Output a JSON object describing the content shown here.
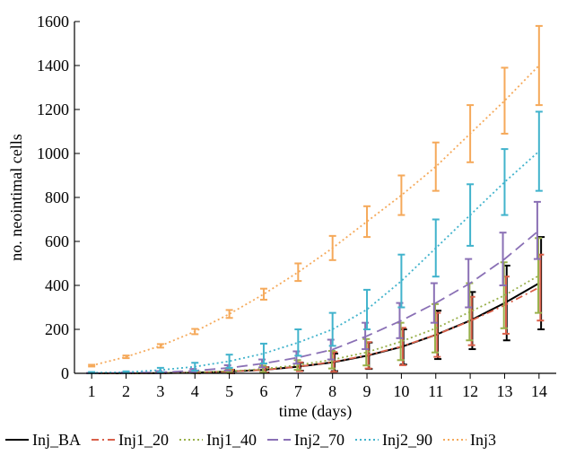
{
  "chart_data": {
    "type": "line",
    "xlabel": "time (days)",
    "ylabel": "no. neointimal cells",
    "x": [
      1,
      2,
      3,
      4,
      5,
      6,
      7,
      8,
      9,
      10,
      11,
      12,
      13,
      14
    ],
    "xlim": [
      0.5,
      14.5
    ],
    "ylim": [
      0,
      1600
    ],
    "yticks": [
      0,
      200,
      400,
      600,
      800,
      1000,
      1200,
      1400,
      1600
    ],
    "xticks": [
      1,
      2,
      3,
      4,
      5,
      6,
      7,
      8,
      9,
      10,
      11,
      12,
      13,
      14
    ],
    "grid": false,
    "legend_position": "bottom",
    "series": [
      {
        "name": "Inj_BA",
        "color": "#000000",
        "dash": "solid",
        "values": [
          0,
          0,
          1,
          3,
          8,
          16,
          30,
          50,
          80,
          120,
          175,
          240,
          320,
          410
        ],
        "errors": [
          0,
          0,
          1,
          3,
          8,
          12,
          18,
          40,
          60,
          80,
          110,
          130,
          170,
          210
        ],
        "error_x_offset": 0.06
      },
      {
        "name": "Inj1_20",
        "color": "#d9604a",
        "dash": "dashdot",
        "values": [
          0,
          0,
          1,
          3,
          8,
          16,
          30,
          52,
          82,
          122,
          175,
          238,
          310,
          390
        ],
        "errors": [
          0,
          0,
          1,
          3,
          8,
          12,
          20,
          45,
          60,
          85,
          100,
          110,
          130,
          150
        ],
        "error_x_offset": 0.04
      },
      {
        "name": "Inj1_40",
        "color": "#98b04a",
        "dash": "dotted",
        "values": [
          0,
          0,
          1,
          4,
          10,
          20,
          38,
          62,
          96,
          145,
          205,
          280,
          355,
          445
        ],
        "errors": [
          0,
          0,
          1,
          3,
          8,
          15,
          22,
          40,
          60,
          85,
          110,
          130,
          150,
          170
        ],
        "error_x_offset": -0.02
      },
      {
        "name": "Inj2_70",
        "color": "#8a70b5",
        "dash": "dashed",
        "values": [
          1,
          2,
          5,
          12,
          25,
          45,
          72,
          108,
          170,
          240,
          320,
          410,
          520,
          650
        ],
        "errors": [
          1,
          2,
          5,
          8,
          12,
          18,
          28,
          45,
          60,
          80,
          90,
          110,
          120,
          130
        ],
        "error_x_offset": -0.05
      },
      {
        "name": "Inj2_90",
        "color": "#41b3cc",
        "dash": "dotted",
        "values": [
          3,
          5,
          15,
          30,
          55,
          90,
          140,
          200,
          290,
          420,
          570,
          720,
          870,
          1010
        ],
        "errors": [
          3,
          4,
          10,
          18,
          30,
          45,
          60,
          75,
          90,
          120,
          130,
          140,
          150,
          180
        ],
        "error_x_offset": 0
      },
      {
        "name": "Inj3",
        "color": "#f5a95a",
        "dash": "dotted",
        "values": [
          35,
          75,
          125,
          190,
          270,
          360,
          460,
          570,
          690,
          810,
          940,
          1090,
          1240,
          1400
        ],
        "errors": [
          4,
          6,
          8,
          12,
          18,
          25,
          40,
          55,
          70,
          90,
          110,
          130,
          150,
          180
        ],
        "error_x_offset": 0
      }
    ]
  }
}
